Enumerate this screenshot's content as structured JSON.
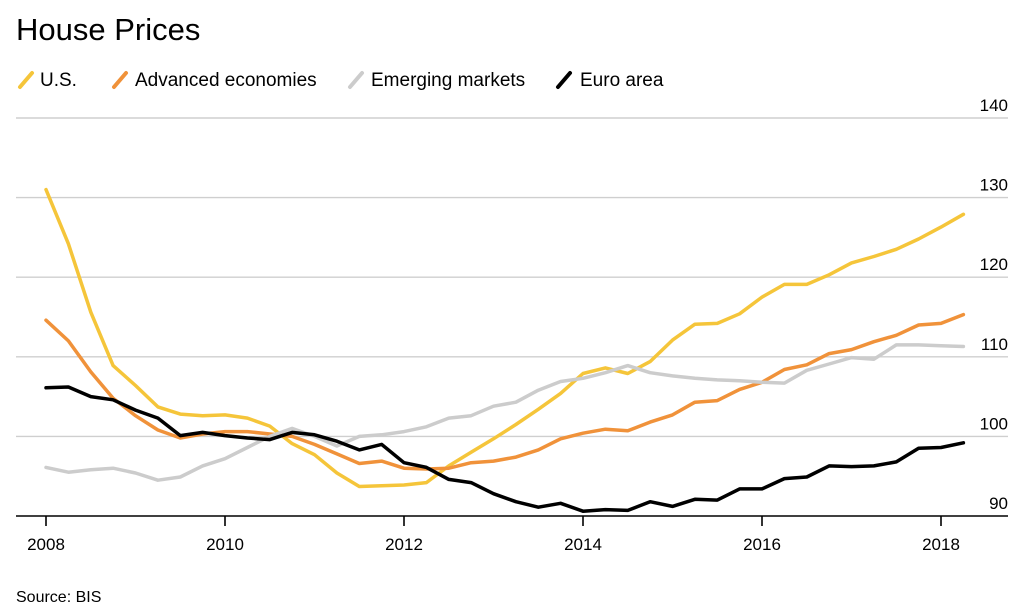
{
  "chart_data": {
    "type": "line",
    "title": "House Prices",
    "source": "Source: BIS",
    "xlim": [
      2008,
      2018.25
    ],
    "ylim": [
      90,
      140
    ],
    "x_ticks": [
      2008,
      2010,
      2012,
      2014,
      2016,
      2018
    ],
    "x_tick_labels": [
      "2008",
      "2010",
      "2012",
      "2014",
      "2016",
      "2018"
    ],
    "y_ticks": [
      90,
      100,
      110,
      120,
      130,
      140
    ],
    "y_tick_labels": [
      "90",
      "100",
      "110",
      "120",
      "130",
      "140"
    ],
    "y_axis_side": "right",
    "grid": "horizontal",
    "legend_position": "top-left",
    "x": [
      2008.0,
      2008.25,
      2008.5,
      2008.75,
      2009.0,
      2009.25,
      2009.5,
      2009.75,
      2010.0,
      2010.25,
      2010.5,
      2010.75,
      2011.0,
      2011.25,
      2011.5,
      2011.75,
      2012.0,
      2012.25,
      2012.5,
      2012.75,
      2013.0,
      2013.25,
      2013.5,
      2013.75,
      2014.0,
      2014.25,
      2014.5,
      2014.75,
      2015.0,
      2015.25,
      2015.5,
      2015.75,
      2016.0,
      2016.25,
      2016.5,
      2016.75,
      2017.0,
      2017.25,
      2017.5,
      2017.75,
      2018.0,
      2018.25
    ],
    "series": [
      {
        "name": "U.S.",
        "color": "#f5c53a",
        "values": [
          131.0,
          124.2,
          115.6,
          108.9,
          106.4,
          103.7,
          102.8,
          102.6,
          102.7,
          102.3,
          101.3,
          99.1,
          97.7,
          95.4,
          93.7,
          93.8,
          93.9,
          94.2,
          96.3,
          98.0,
          99.7,
          101.5,
          103.4,
          105.4,
          107.9,
          108.6,
          107.9,
          109.4,
          112.1,
          114.1,
          114.2,
          115.4,
          117.5,
          119.1,
          119.1,
          120.3,
          121.8,
          122.6,
          123.5,
          124.8,
          126.3,
          127.9
        ]
      },
      {
        "name": "Advanced economies",
        "color": "#f0923a",
        "values": [
          114.6,
          112.0,
          108.1,
          104.8,
          102.6,
          100.8,
          99.8,
          100.3,
          100.6,
          100.6,
          100.3,
          100.0,
          99.0,
          97.8,
          96.6,
          96.9,
          96.0,
          95.9,
          96.0,
          96.7,
          96.9,
          97.4,
          98.3,
          99.7,
          100.4,
          100.9,
          100.7,
          101.8,
          102.7,
          104.3,
          104.5,
          105.9,
          106.8,
          108.4,
          109.0,
          110.4,
          110.9,
          111.9,
          112.7,
          114.0,
          114.2,
          115.3
        ]
      },
      {
        "name": "Emerging markets",
        "color": "#cccccc",
        "values": [
          96.1,
          95.5,
          95.8,
          96.0,
          95.4,
          94.5,
          94.9,
          96.3,
          97.2,
          98.6,
          100.0,
          101.0,
          100.0,
          98.8,
          100.0,
          100.2,
          100.6,
          101.2,
          102.3,
          102.6,
          103.8,
          104.3,
          105.8,
          106.9,
          107.3,
          108.0,
          108.9,
          108.0,
          107.6,
          107.3,
          107.1,
          107.0,
          106.8,
          106.7,
          108.3,
          109.1,
          109.9,
          109.7,
          111.5,
          111.5,
          111.4,
          111.3
        ]
      },
      {
        "name": "Euro area",
        "color": "#000000",
        "values": [
          106.1,
          106.2,
          105.0,
          104.6,
          103.3,
          102.3,
          100.1,
          100.5,
          100.1,
          99.8,
          99.6,
          100.5,
          100.2,
          99.4,
          98.3,
          99.0,
          96.7,
          96.1,
          94.6,
          94.2,
          92.8,
          91.8,
          91.1,
          91.6,
          90.6,
          90.8,
          90.7,
          91.8,
          91.2,
          92.1,
          92.0,
          93.4,
          93.4,
          94.7,
          94.9,
          96.3,
          96.2,
          96.3,
          96.8,
          98.5,
          98.6,
          99.2
        ]
      }
    ]
  }
}
